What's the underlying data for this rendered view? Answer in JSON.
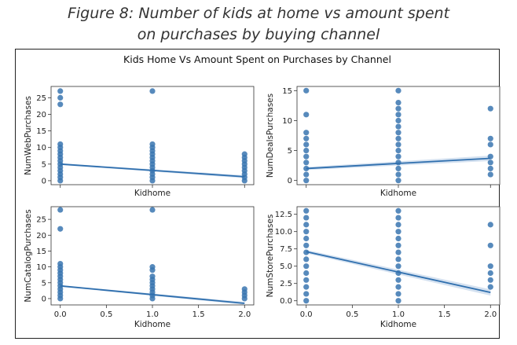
{
  "caption": {
    "line1": "Figure 8: Number of kids at home vs amount spent",
    "line2": "on purchases by buying channel"
  },
  "suptitle": "Kids Home Vs Amount Spent on Purchases by Channel",
  "colors": {
    "point": "#3a75b0",
    "line": "#2f6fae",
    "band": "#c9daec",
    "axis": "#333333",
    "text": "#222222"
  },
  "chart_data": [
    {
      "type": "scatter",
      "xlabel": "Kidhome",
      "ylabel": "NumWebPurchases",
      "xlim": [
        -0.1,
        2.1
      ],
      "ylim": [
        -1.2,
        28.4
      ],
      "xticks": [
        0.0,
        1.0,
        2.0
      ],
      "xticklabels": [
        "",
        "",
        ""
      ],
      "yticks": [
        0,
        5,
        10,
        15,
        20,
        25
      ],
      "yticklabels": [
        "0",
        "5",
        "10",
        "15",
        "20",
        "25"
      ],
      "points": [
        {
          "x": 0,
          "y": 0
        },
        {
          "x": 0,
          "y": 1
        },
        {
          "x": 0,
          "y": 2
        },
        {
          "x": 0,
          "y": 3
        },
        {
          "x": 0,
          "y": 4
        },
        {
          "x": 0,
          "y": 5
        },
        {
          "x": 0,
          "y": 6
        },
        {
          "x": 0,
          "y": 7
        },
        {
          "x": 0,
          "y": 8
        },
        {
          "x": 0,
          "y": 9
        },
        {
          "x": 0,
          "y": 10
        },
        {
          "x": 0,
          "y": 11
        },
        {
          "x": 0,
          "y": 23
        },
        {
          "x": 0,
          "y": 25
        },
        {
          "x": 0,
          "y": 27
        },
        {
          "x": 1,
          "y": 0
        },
        {
          "x": 1,
          "y": 1
        },
        {
          "x": 1,
          "y": 2
        },
        {
          "x": 1,
          "y": 3
        },
        {
          "x": 1,
          "y": 4
        },
        {
          "x": 1,
          "y": 5
        },
        {
          "x": 1,
          "y": 6
        },
        {
          "x": 1,
          "y": 7
        },
        {
          "x": 1,
          "y": 8
        },
        {
          "x": 1,
          "y": 9
        },
        {
          "x": 1,
          "y": 10
        },
        {
          "x": 1,
          "y": 11
        },
        {
          "x": 1,
          "y": 27
        },
        {
          "x": 2,
          "y": 0
        },
        {
          "x": 2,
          "y": 1
        },
        {
          "x": 2,
          "y": 2
        },
        {
          "x": 2,
          "y": 3
        },
        {
          "x": 2,
          "y": 4
        },
        {
          "x": 2,
          "y": 5
        },
        {
          "x": 2,
          "y": 6
        },
        {
          "x": 2,
          "y": 7
        },
        {
          "x": 2,
          "y": 8
        }
      ],
      "trend": {
        "x": [
          0,
          2
        ],
        "y": [
          5.0,
          1.2
        ]
      }
    },
    {
      "type": "scatter",
      "xlabel": "Kidhome",
      "ylabel": "NumDealsPurchases",
      "xlim": [
        -0.1,
        2.1
      ],
      "ylim": [
        -0.7,
        15.7
      ],
      "xticks": [
        0.0,
        1.0,
        2.0
      ],
      "xticklabels": [
        "",
        "",
        ""
      ],
      "yticks": [
        0,
        5,
        10,
        15
      ],
      "yticklabels": [
        "0",
        "5",
        "10",
        "15"
      ],
      "points": [
        {
          "x": 0,
          "y": 0
        },
        {
          "x": 0,
          "y": 1
        },
        {
          "x": 0,
          "y": 2
        },
        {
          "x": 0,
          "y": 3
        },
        {
          "x": 0,
          "y": 4
        },
        {
          "x": 0,
          "y": 5
        },
        {
          "x": 0,
          "y": 6
        },
        {
          "x": 0,
          "y": 7
        },
        {
          "x": 0,
          "y": 8
        },
        {
          "x": 0,
          "y": 11
        },
        {
          "x": 0,
          "y": 15
        },
        {
          "x": 1,
          "y": 0
        },
        {
          "x": 1,
          "y": 1
        },
        {
          "x": 1,
          "y": 2
        },
        {
          "x": 1,
          "y": 3
        },
        {
          "x": 1,
          "y": 4
        },
        {
          "x": 1,
          "y": 5
        },
        {
          "x": 1,
          "y": 6
        },
        {
          "x": 1,
          "y": 7
        },
        {
          "x": 1,
          "y": 8
        },
        {
          "x": 1,
          "y": 9
        },
        {
          "x": 1,
          "y": 10
        },
        {
          "x": 1,
          "y": 11
        },
        {
          "x": 1,
          "y": 12
        },
        {
          "x": 1,
          "y": 13
        },
        {
          "x": 1,
          "y": 15
        },
        {
          "x": 2,
          "y": 1
        },
        {
          "x": 2,
          "y": 2
        },
        {
          "x": 2,
          "y": 3
        },
        {
          "x": 2,
          "y": 4
        },
        {
          "x": 2,
          "y": 6
        },
        {
          "x": 2,
          "y": 7
        },
        {
          "x": 2,
          "y": 12
        }
      ],
      "trend": {
        "x": [
          0,
          2
        ],
        "y": [
          2.0,
          3.7
        ]
      }
    },
    {
      "type": "scatter",
      "xlabel": "Kidhome",
      "ylabel": "NumCatalogPurchases",
      "xlim": [
        -0.1,
        2.1
      ],
      "ylim": [
        -2.0,
        29.0
      ],
      "xticks": [
        0.0,
        0.5,
        1.0,
        1.5,
        2.0
      ],
      "xticklabels": [
        "0.0",
        "0.5",
        "1.0",
        "1.5",
        "2.0"
      ],
      "yticks": [
        0,
        5,
        10,
        15,
        20,
        25
      ],
      "yticklabels": [
        "0",
        "5",
        "10",
        "15",
        "20",
        "25"
      ],
      "points": [
        {
          "x": 0,
          "y": 0
        },
        {
          "x": 0,
          "y": 1
        },
        {
          "x": 0,
          "y": 2
        },
        {
          "x": 0,
          "y": 3
        },
        {
          "x": 0,
          "y": 4
        },
        {
          "x": 0,
          "y": 5
        },
        {
          "x": 0,
          "y": 6
        },
        {
          "x": 0,
          "y": 7
        },
        {
          "x": 0,
          "y": 8
        },
        {
          "x": 0,
          "y": 9
        },
        {
          "x": 0,
          "y": 10
        },
        {
          "x": 0,
          "y": 11
        },
        {
          "x": 0,
          "y": 22
        },
        {
          "x": 0,
          "y": 28
        },
        {
          "x": 1,
          "y": 0
        },
        {
          "x": 1,
          "y": 1
        },
        {
          "x": 1,
          "y": 2
        },
        {
          "x": 1,
          "y": 3
        },
        {
          "x": 1,
          "y": 4
        },
        {
          "x": 1,
          "y": 5
        },
        {
          "x": 1,
          "y": 6
        },
        {
          "x": 1,
          "y": 7
        },
        {
          "x": 1,
          "y": 9
        },
        {
          "x": 1,
          "y": 10
        },
        {
          "x": 1,
          "y": 28
        },
        {
          "x": 2,
          "y": 0
        },
        {
          "x": 2,
          "y": 1
        },
        {
          "x": 2,
          "y": 2
        },
        {
          "x": 2,
          "y": 3
        }
      ],
      "trend": {
        "x": [
          0,
          2
        ],
        "y": [
          4.0,
          -1.5
        ]
      }
    },
    {
      "type": "scatter",
      "xlabel": "Kidhome",
      "ylabel": "NumStorePurchases",
      "xlim": [
        -0.1,
        2.1
      ],
      "ylim": [
        -0.6,
        13.6
      ],
      "xticks": [
        0.0,
        0.5,
        1.0,
        1.5,
        2.0
      ],
      "xticklabels": [
        "0.0",
        "0.5",
        "1.0",
        "1.5",
        "2.0"
      ],
      "yticks": [
        0.0,
        2.5,
        5.0,
        7.5,
        10.0,
        12.5
      ],
      "yticklabels": [
        "0.0",
        "2.5",
        "5.0",
        "7.5",
        "10.0",
        "12.5"
      ],
      "points": [
        {
          "x": 0,
          "y": 0
        },
        {
          "x": 0,
          "y": 1
        },
        {
          "x": 0,
          "y": 2
        },
        {
          "x": 0,
          "y": 3
        },
        {
          "x": 0,
          "y": 4
        },
        {
          "x": 0,
          "y": 5
        },
        {
          "x": 0,
          "y": 6
        },
        {
          "x": 0,
          "y": 7
        },
        {
          "x": 0,
          "y": 8
        },
        {
          "x": 0,
          "y": 9
        },
        {
          "x": 0,
          "y": 10
        },
        {
          "x": 0,
          "y": 11
        },
        {
          "x": 0,
          "y": 12
        },
        {
          "x": 0,
          "y": 13
        },
        {
          "x": 1,
          "y": 0
        },
        {
          "x": 1,
          "y": 1
        },
        {
          "x": 1,
          "y": 2
        },
        {
          "x": 1,
          "y": 3
        },
        {
          "x": 1,
          "y": 4
        },
        {
          "x": 1,
          "y": 5
        },
        {
          "x": 1,
          "y": 6
        },
        {
          "x": 1,
          "y": 7
        },
        {
          "x": 1,
          "y": 8
        },
        {
          "x": 1,
          "y": 9
        },
        {
          "x": 1,
          "y": 10
        },
        {
          "x": 1,
          "y": 11
        },
        {
          "x": 1,
          "y": 12
        },
        {
          "x": 1,
          "y": 13
        },
        {
          "x": 2,
          "y": 2
        },
        {
          "x": 2,
          "y": 3
        },
        {
          "x": 2,
          "y": 4
        },
        {
          "x": 2,
          "y": 5
        },
        {
          "x": 2,
          "y": 8
        },
        {
          "x": 2,
          "y": 11
        }
      ],
      "trend": {
        "x": [
          0,
          2
        ],
        "y": [
          7.1,
          1.2
        ]
      }
    }
  ]
}
